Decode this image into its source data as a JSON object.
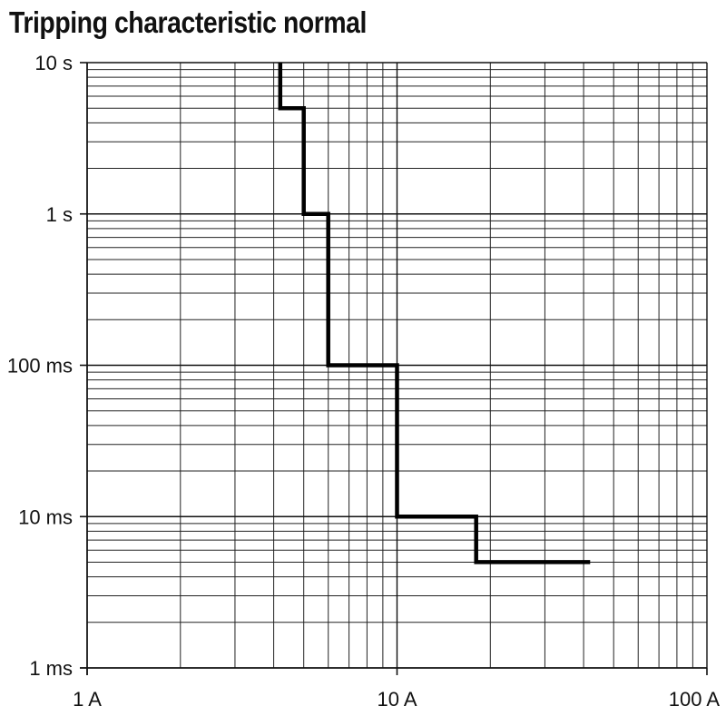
{
  "chart_data": {
    "type": "line",
    "title": "Tripping characteristic normal",
    "xlabel": "",
    "ylabel": "",
    "x_scale": "log",
    "y_scale": "log",
    "xlim": [
      1,
      100
    ],
    "ylim": [
      0.001,
      10
    ],
    "grid": true,
    "x_ticks": [
      {
        "value": 1,
        "label": "1 A"
      },
      {
        "value": 10,
        "label": "10 A"
      },
      {
        "value": 100,
        "label": "100 A"
      }
    ],
    "y_ticks": [
      {
        "value": 10,
        "label": "10 s"
      },
      {
        "value": 1,
        "label": "1 s"
      },
      {
        "value": 0.1,
        "label": "100 ms"
      },
      {
        "value": 0.01,
        "label": "10 ms"
      },
      {
        "value": 0.001,
        "label": "1 ms"
      }
    ],
    "series": [
      {
        "line_color": "#000000",
        "points": [
          {
            "x": 4.2,
            "y": 10
          },
          {
            "x": 4.2,
            "y": 5
          },
          {
            "x": 5.0,
            "y": 5
          },
          {
            "x": 5.0,
            "y": 1
          },
          {
            "x": 6.0,
            "y": 1
          },
          {
            "x": 6.0,
            "y": 0.1
          },
          {
            "x": 10.0,
            "y": 0.1
          },
          {
            "x": 10.0,
            "y": 0.01
          },
          {
            "x": 18.0,
            "y": 0.01
          },
          {
            "x": 18.0,
            "y": 0.005
          },
          {
            "x": 42.0,
            "y": 0.005
          }
        ]
      }
    ]
  }
}
